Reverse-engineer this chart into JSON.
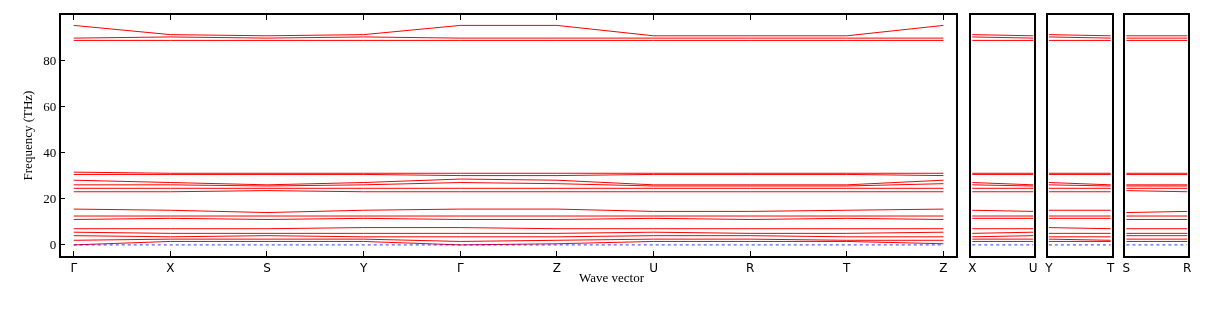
{
  "chart_data": [
    {
      "type": "line",
      "ylabel": "Frequency (THz)",
      "xlabel": "Wave vector",
      "color": "#ff0000",
      "categories": [
        "Γ",
        "X",
        "S",
        "Y",
        "Γ",
        "Z",
        "U",
        "R",
        "T",
        "Z"
      ],
      "ylim": [
        -4.8,
        99.5
      ],
      "yticks": [
        0,
        20,
        40,
        60,
        80
      ],
      "ref_lines": [
        {
          "axis": "y",
          "value": 0,
          "color": "#0000ff",
          "line_style": "dotted"
        }
      ],
      "series": [
        {
          "values": [
            95,
            91,
            90.5,
            91,
            95,
            95,
            90.5,
            90.5,
            90.5,
            95
          ]
        },
        {
          "values": [
            89.5,
            90,
            89.5,
            90,
            89.5,
            89.5,
            89.5,
            89.5,
            89.5,
            89.5
          ]
        },
        {
          "values": [
            88.5,
            88.5,
            88.5,
            88.5,
            88.5,
            88.5,
            88.5,
            88.5,
            88.5,
            88.5
          ]
        },
        {
          "values": [
            31.5,
            31,
            31,
            31,
            31,
            31,
            31,
            31,
            31,
            31
          ]
        },
        {
          "values": [
            30.5,
            30.5,
            30.5,
            30.5,
            30,
            30,
            30.5,
            30.5,
            30.5,
            30
          ]
        },
        {
          "values": [
            28,
            27,
            26,
            27,
            28.5,
            28,
            26,
            26,
            26,
            28
          ]
        },
        {
          "values": [
            26,
            26,
            25.5,
            26,
            27,
            26.5,
            25.5,
            25.5,
            25.5,
            26.5
          ]
        },
        {
          "values": [
            24.5,
            24.5,
            24.5,
            24.5,
            24.5,
            24.5,
            24.5,
            24.5,
            24.5,
            24.5
          ]
        },
        {
          "values": [
            23,
            23,
            23.5,
            23,
            23,
            23,
            23,
            23,
            23,
            23
          ]
        },
        {
          "values": [
            15.5,
            15,
            14,
            15,
            15.5,
            15.5,
            14.5,
            14.5,
            15,
            15.5
          ]
        },
        {
          "values": [
            12.5,
            12.5,
            12.5,
            12.5,
            12.5,
            12.5,
            12.5,
            12.5,
            12.5,
            12.5
          ]
        },
        {
          "values": [
            11,
            11.5,
            11,
            11.5,
            11,
            11,
            11.5,
            11,
            11.5,
            11
          ]
        },
        {
          "values": [
            7,
            7,
            7,
            7.5,
            7.5,
            7,
            7,
            7,
            7,
            7
          ]
        },
        {
          "values": [
            5.5,
            5,
            5,
            5,
            5,
            5,
            5.5,
            5,
            5,
            5.5
          ]
        },
        {
          "values": [
            4,
            3.5,
            4,
            3.5,
            3.5,
            3.5,
            4,
            4,
            3.5,
            3.5
          ]
        },
        {
          "values": [
            2,
            2.5,
            2.5,
            2.5,
            1.5,
            2,
            2.5,
            2.5,
            2,
            2
          ]
        },
        {
          "values": [
            0,
            1.5,
            1.5,
            1.5,
            0,
            0.5,
            1.5,
            1.5,
            1.5,
            0.5
          ]
        }
      ]
    },
    {
      "type": "line",
      "color": "#ff0000",
      "tick_labels": "x",
      "categories": [
        "X",
        "U"
      ],
      "ylim": [
        -4.8,
        99.5
      ],
      "yticks": [
        0,
        20,
        40,
        60,
        80
      ],
      "ref_lines": [
        {
          "axis": "y",
          "value": 0,
          "color": "#0000ff",
          "line_style": "dotted"
        }
      ],
      "series": [
        {
          "values": [
            91,
            90.5
          ]
        },
        {
          "values": [
            90,
            89.5
          ]
        },
        {
          "values": [
            88.5,
            88.5
          ]
        },
        {
          "values": [
            31,
            31
          ]
        },
        {
          "values": [
            30.5,
            30.5
          ]
        },
        {
          "values": [
            27,
            26
          ]
        },
        {
          "values": [
            26,
            25.5
          ]
        },
        {
          "values": [
            24.5,
            24.5
          ]
        },
        {
          "values": [
            23,
            23
          ]
        },
        {
          "values": [
            15,
            14.5
          ]
        },
        {
          "values": [
            12.5,
            12.5
          ]
        },
        {
          "values": [
            11.5,
            11.5
          ]
        },
        {
          "values": [
            7,
            7
          ]
        },
        {
          "values": [
            5,
            5.5
          ]
        },
        {
          "values": [
            3.5,
            4
          ]
        },
        {
          "values": [
            2.5,
            2.5
          ]
        },
        {
          "values": [
            1.5,
            1.5
          ]
        }
      ]
    },
    {
      "type": "line",
      "color": "#ff0000",
      "tick_labels": "x",
      "categories": [
        "Y",
        "T"
      ],
      "ylim": [
        -4.8,
        99.5
      ],
      "yticks": [
        0,
        20,
        40,
        60,
        80
      ],
      "ref_lines": [
        {
          "axis": "y",
          "value": 0,
          "color": "#0000ff",
          "line_style": "dotted"
        }
      ],
      "series": [
        {
          "values": [
            91,
            90.5
          ]
        },
        {
          "values": [
            90,
            89.5
          ]
        },
        {
          "values": [
            88.5,
            88.5
          ]
        },
        {
          "values": [
            31,
            31
          ]
        },
        {
          "values": [
            30.5,
            30.5
          ]
        },
        {
          "values": [
            27,
            26
          ]
        },
        {
          "values": [
            26,
            25.5
          ]
        },
        {
          "values": [
            24.5,
            24.5
          ]
        },
        {
          "values": [
            23,
            23
          ]
        },
        {
          "values": [
            15,
            15
          ]
        },
        {
          "values": [
            12.5,
            12.5
          ]
        },
        {
          "values": [
            11.5,
            11.5
          ]
        },
        {
          "values": [
            7.5,
            7
          ]
        },
        {
          "values": [
            5,
            5
          ]
        },
        {
          "values": [
            3.5,
            3.5
          ]
        },
        {
          "values": [
            2.5,
            2
          ]
        },
        {
          "values": [
            1.5,
            1.5
          ]
        }
      ]
    },
    {
      "type": "line",
      "color": "#ff0000",
      "tick_labels": "x",
      "categories": [
        "S",
        "R"
      ],
      "ylim": [
        -4.8,
        99.5
      ],
      "yticks": [
        0,
        20,
        40,
        60,
        80
      ],
      "ref_lines": [
        {
          "axis": "y",
          "value": 0,
          "color": "#0000ff",
          "line_style": "dotted"
        }
      ],
      "series": [
        {
          "values": [
            90.5,
            90.5
          ]
        },
        {
          "values": [
            89.5,
            89.5
          ]
        },
        {
          "values": [
            88.5,
            88.5
          ]
        },
        {
          "values": [
            31,
            31
          ]
        },
        {
          "values": [
            30.5,
            30.5
          ]
        },
        {
          "values": [
            26,
            26
          ]
        },
        {
          "values": [
            25.5,
            25.5
          ]
        },
        {
          "values": [
            24.5,
            24.5
          ]
        },
        {
          "values": [
            23.5,
            23
          ]
        },
        {
          "values": [
            14,
            14.5
          ]
        },
        {
          "values": [
            12.5,
            12.5
          ]
        },
        {
          "values": [
            11,
            11
          ]
        },
        {
          "values": [
            7,
            7
          ]
        },
        {
          "values": [
            5,
            5
          ]
        },
        {
          "values": [
            4,
            4
          ]
        },
        {
          "values": [
            2.5,
            2.5
          ]
        },
        {
          "values": [
            1.5,
            1.5
          ]
        }
      ]
    }
  ]
}
